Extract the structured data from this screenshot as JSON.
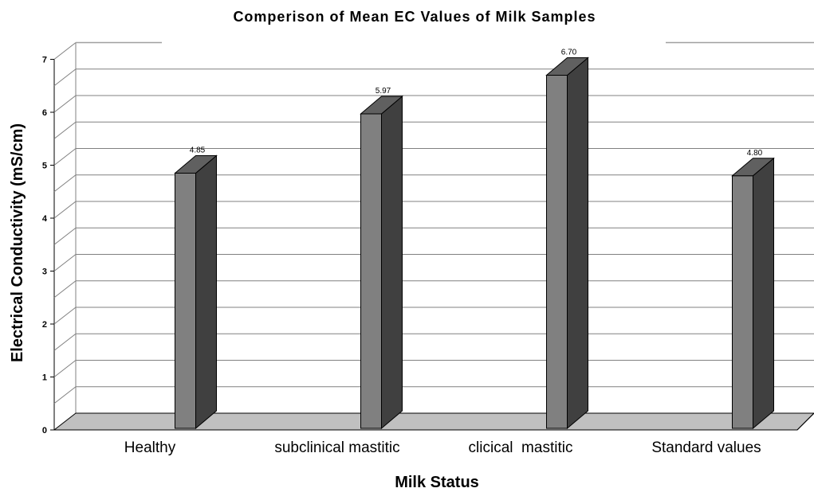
{
  "chart_data": {
    "type": "bar",
    "title": "Comperison of Mean EC Values of Milk Samples",
    "xlabel": "Milk Status",
    "ylabel": "Electrical Conductivity (mS/cm)",
    "categories": [
      "Healthy",
      "subclinical mastitic",
      "clicical  mastitic",
      "Standard values"
    ],
    "values": [
      4.85,
      5.97,
      6.7,
      4.8
    ],
    "data_labels": [
      "4.85",
      "5.97",
      "6.70",
      "4.80"
    ],
    "y_ticks": [
      "0",
      "1",
      "2",
      "3",
      "4",
      "5",
      "6",
      "7"
    ],
    "ylim": [
      0,
      7
    ],
    "style": "3d-column",
    "grid": true,
    "legend": "none",
    "colors": {
      "bar_front": "#808080",
      "bar_side": "#404040",
      "bar_top": "#606060",
      "floor": "#c0c0c0",
      "grid": "#808080"
    }
  }
}
